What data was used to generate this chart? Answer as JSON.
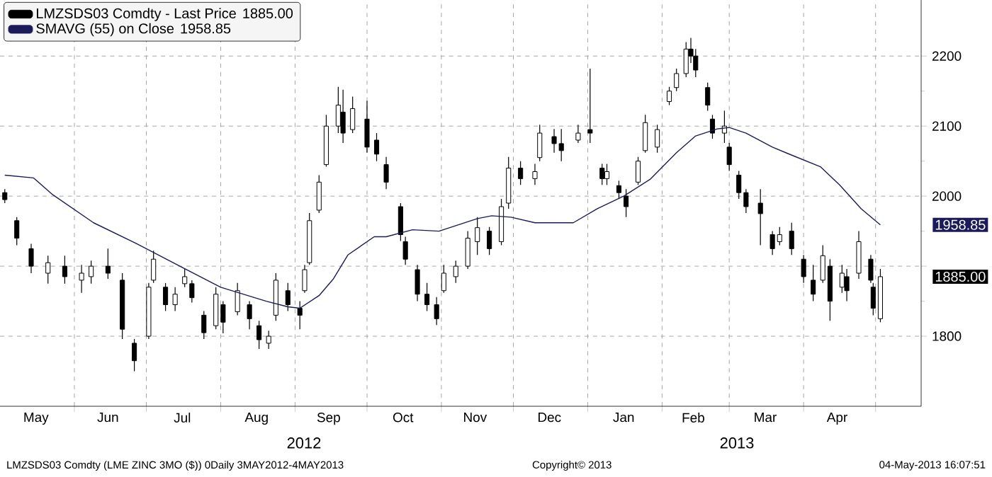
{
  "chart_data": {
    "type": "candlestick",
    "xlim": [
      "2012-05-01",
      "2013-05-20"
    ],
    "ylim": [
      1700,
      2280
    ],
    "xticks": [
      {
        "value": "2012-05-16",
        "label": "May"
      },
      {
        "value": "2012-06-01",
        "label": null
      },
      {
        "value": "2012-06-15",
        "label": "Jun"
      },
      {
        "value": "2012-07-01",
        "label": null
      },
      {
        "value": "2012-07-16",
        "label": "Jul"
      },
      {
        "value": "2012-08-01",
        "label": null
      },
      {
        "value": "2012-08-16",
        "label": "Aug"
      },
      {
        "value": "2012-09-01",
        "label": null
      },
      {
        "value": "2012-09-15",
        "label": "Sep"
      },
      {
        "value": "2012-10-01",
        "label": null
      },
      {
        "value": "2012-10-16",
        "label": "Oct"
      },
      {
        "value": "2012-11-01",
        "label": null
      },
      {
        "value": "2012-11-15",
        "label": "Nov"
      },
      {
        "value": "2012-12-01",
        "label": null
      },
      {
        "value": "2012-12-16",
        "label": "Dec"
      },
      {
        "value": "2013-01-01",
        "label": null
      },
      {
        "value": "2013-01-16",
        "label": "Jan"
      },
      {
        "value": "2013-02-01",
        "label": null
      },
      {
        "value": "2013-02-14",
        "label": "Feb"
      },
      {
        "value": "2013-03-01",
        "label": null
      },
      {
        "value": "2013-03-16",
        "label": "Mar"
      },
      {
        "value": "2013-04-01",
        "label": null
      },
      {
        "value": "2013-04-15",
        "label": "Apr"
      },
      {
        "value": "2013-05-01",
        "label": null
      }
    ],
    "yticks": [
      1800,
      {
        "value": 1900,
        "label": null
      },
      2000,
      2100,
      2200
    ],
    "grid": true,
    "legend": "top left",
    "series": [
      {
        "name": "LMZSDS03 Comdty - Last Price",
        "color": "#000000",
        "x": [
          "2012-05-03",
          "2012-05-08",
          "2012-05-14",
          "2012-05-21",
          "2012-05-28",
          "2012-06-04",
          "2012-06-08",
          "2012-06-15",
          "2012-06-21",
          "2012-06-26",
          "2012-07-02",
          "2012-07-04",
          "2012-07-09",
          "2012-07-13",
          "2012-07-17",
          "2012-07-20",
          "2012-07-25",
          "2012-07-30",
          "2012-08-02",
          "2012-08-08",
          "2012-08-13",
          "2012-08-17",
          "2012-08-21",
          "2012-08-24",
          "2012-08-29",
          "2012-09-03",
          "2012-09-05",
          "2012-09-07",
          "2012-09-11",
          "2012-09-14",
          "2012-09-19",
          "2012-09-21",
          "2012-09-25",
          "2012-10-01",
          "2012-10-05",
          "2012-10-09",
          "2012-10-15",
          "2012-10-17",
          "2012-10-22",
          "2012-10-26",
          "2012-10-30",
          "2012-11-02",
          "2012-11-07",
          "2012-11-12",
          "2012-11-16",
          "2012-11-21",
          "2012-11-26",
          "2012-11-29",
          "2012-12-04",
          "2012-12-10",
          "2012-12-12",
          "2012-12-18",
          "2012-12-21",
          "2012-12-28",
          "2013-01-02",
          "2013-01-07",
          "2013-01-09",
          "2013-01-14",
          "2013-01-17",
          "2013-01-22",
          "2013-01-25",
          "2013-01-30",
          "2013-02-04",
          "2013-02-07",
          "2013-02-11",
          "2013-02-13",
          "2013-02-15",
          "2013-02-20",
          "2013-02-22",
          "2013-02-27",
          "2013-03-01",
          "2013-03-05",
          "2013-03-08",
          "2013-03-14",
          "2013-03-19",
          "2013-03-22",
          "2013-03-27",
          "2013-04-01",
          "2013-04-05",
          "2013-04-09",
          "2013-04-12",
          "2013-04-17",
          "2013-04-19",
          "2013-04-24",
          "2013-04-29",
          "2013-04-30",
          "2013-05-03"
        ],
        "ohlc": [
          [
            2005,
            2010,
            1990,
            1995
          ],
          [
            1965,
            1970,
            1930,
            1940
          ],
          [
            1925,
            1932,
            1890,
            1900
          ],
          [
            1890,
            1915,
            1875,
            1905
          ],
          [
            1900,
            1915,
            1875,
            1885
          ],
          [
            1880,
            1902,
            1862,
            1890
          ],
          [
            1885,
            1908,
            1875,
            1900
          ],
          [
            1900,
            1925,
            1882,
            1890
          ],
          [
            1880,
            1890,
            1796,
            1810
          ],
          [
            1790,
            1796,
            1750,
            1765
          ],
          [
            1800,
            1876,
            1796,
            1870
          ],
          [
            1880,
            1922,
            1876,
            1910
          ],
          [
            1870,
            1876,
            1836,
            1845
          ],
          [
            1845,
            1870,
            1836,
            1860
          ],
          [
            1875,
            1896,
            1870,
            1885
          ],
          [
            1875,
            1880,
            1848,
            1855
          ],
          [
            1830,
            1836,
            1796,
            1805
          ],
          [
            1815,
            1870,
            1810,
            1860
          ],
          [
            1845,
            1850,
            1804,
            1820
          ],
          [
            1835,
            1876,
            1830,
            1865
          ],
          [
            1845,
            1850,
            1810,
            1825
          ],
          [
            1815,
            1822,
            1782,
            1795
          ],
          [
            1790,
            1808,
            1782,
            1800
          ],
          [
            1830,
            1890,
            1822,
            1880
          ],
          [
            1865,
            1876,
            1836,
            1845
          ],
          [
            1840,
            1850,
            1810,
            1830
          ],
          [
            1865,
            1902,
            1862,
            1895
          ],
          [
            1905,
            1976,
            1902,
            1965
          ],
          [
            1980,
            2030,
            1976,
            2020
          ],
          [
            2045,
            2116,
            2042,
            2100
          ],
          [
            2100,
            2156,
            2090,
            2130
          ],
          [
            2120,
            2152,
            2076,
            2090
          ],
          [
            2095,
            2142,
            2090,
            2125
          ],
          [
            2110,
            2136,
            2062,
            2070
          ],
          [
            2080,
            2090,
            2050,
            2060
          ],
          [
            2045,
            2056,
            2010,
            2020
          ],
          [
            1985,
            1990,
            1936,
            1945
          ],
          [
            1935,
            1942,
            1902,
            1910
          ],
          [
            1895,
            1902,
            1850,
            1860
          ],
          [
            1860,
            1876,
            1836,
            1845
          ],
          [
            1845,
            1856,
            1816,
            1825
          ],
          [
            1865,
            1902,
            1862,
            1890
          ],
          [
            1885,
            1908,
            1876,
            1900
          ],
          [
            1900,
            1950,
            1896,
            1940
          ],
          [
            1935,
            1970,
            1916,
            1955
          ],
          [
            1950,
            1956,
            1916,
            1925
          ],
          [
            1935,
            1996,
            1930,
            1985
          ],
          [
            1990,
            2056,
            1982,
            2040
          ],
          [
            2040,
            2050,
            2016,
            2025
          ],
          [
            2025,
            2046,
            2016,
            2035
          ],
          [
            2055,
            2102,
            2050,
            2090
          ],
          [
            2085,
            2096,
            2062,
            2075
          ],
          [
            2075,
            2096,
            2050,
            2065
          ],
          [
            2080,
            2102,
            2076,
            2090
          ],
          [
            2095,
            2182,
            2076,
            2090
          ],
          [
            2040,
            2046,
            2016,
            2025
          ],
          [
            2025,
            2046,
            2016,
            2035
          ],
          [
            2015,
            2022,
            1996,
            2005
          ],
          [
            2000,
            2010,
            1970,
            1985
          ],
          [
            2020,
            2056,
            2016,
            2050
          ],
          [
            2065,
            2116,
            2062,
            2105
          ],
          [
            2070,
            2102,
            2062,
            2095
          ],
          [
            2135,
            2156,
            2130,
            2150
          ],
          [
            2155,
            2182,
            2150,
            2175
          ],
          [
            2175,
            2220,
            2170,
            2210
          ],
          [
            2210,
            2226,
            2190,
            2200
          ],
          [
            2200,
            2210,
            2170,
            2180
          ],
          [
            2155,
            2162,
            2122,
            2130
          ],
          [
            2110,
            2116,
            2082,
            2090
          ],
          [
            2090,
            2122,
            2076,
            2100
          ],
          [
            2070,
            2076,
            2036,
            2045
          ],
          [
            2030,
            2036,
            1996,
            2005
          ],
          [
            2005,
            2010,
            1976,
            1985
          ],
          [
            1990,
            2010,
            1930,
            1975
          ],
          [
            1945,
            1950,
            1916,
            1925
          ],
          [
            1935,
            1956,
            1930,
            1945
          ],
          [
            1950,
            1962,
            1916,
            1925
          ],
          [
            1910,
            1916,
            1876,
            1885
          ],
          [
            1880,
            1902,
            1850,
            1860
          ],
          [
            1880,
            1930,
            1876,
            1915
          ],
          [
            1900,
            1910,
            1822,
            1850
          ],
          [
            1870,
            1902,
            1862,
            1890
          ],
          [
            1885,
            1896,
            1850,
            1865
          ],
          [
            1890,
            1950,
            1882,
            1935
          ],
          [
            1910,
            1916,
            1876,
            1880
          ],
          [
            1870,
            1876,
            1830,
            1840
          ],
          [
            1825,
            1896,
            1820,
            1885
          ]
        ]
      },
      {
        "type": "line",
        "name": "SMAVG (55) on Close",
        "color": "#1b1b5c",
        "x": [
          "2012-05-03",
          "2012-05-15",
          "2012-05-23",
          "2012-06-09",
          "2012-06-27",
          "2012-07-15",
          "2012-08-01",
          "2012-08-20",
          "2012-08-29",
          "2012-09-03",
          "2012-09-11",
          "2012-09-17",
          "2012-09-23",
          "2012-10-04",
          "2012-10-09",
          "2012-10-20",
          "2012-10-31",
          "2012-11-16",
          "2012-11-22",
          "2012-11-30",
          "2012-12-10",
          "2012-12-26",
          "2013-01-05",
          "2013-01-16",
          "2013-01-27",
          "2013-02-07",
          "2013-02-15",
          "2013-02-24",
          "2013-03-01",
          "2013-03-08",
          "2013-03-19",
          "2013-03-26",
          "2013-04-08",
          "2013-04-16",
          "2013-04-25",
          "2013-05-03"
        ],
        "values": [
          2030,
          2026,
          2002,
          1962,
          1932,
          1900,
          1870,
          1850,
          1842,
          1840,
          1858,
          1882,
          1916,
          1942,
          1942,
          1952,
          1950,
          1968,
          1972,
          1970,
          1962,
          1962,
          1982,
          2000,
          2024,
          2062,
          2086,
          2096,
          2098,
          2090,
          2070,
          2060,
          2042,
          2016,
          1982,
          1959
        ]
      }
    ],
    "annotations": [
      "1885.00",
      "1958.85",
      "2012",
      "2013",
      "LMZSDS03 Comdty (LME ZINC 3MO ($)) 0Daily 3MAY2012-4MAY2013",
      "Copyright© 2013",
      "04-May-2013 16:07:51"
    ]
  }
}
